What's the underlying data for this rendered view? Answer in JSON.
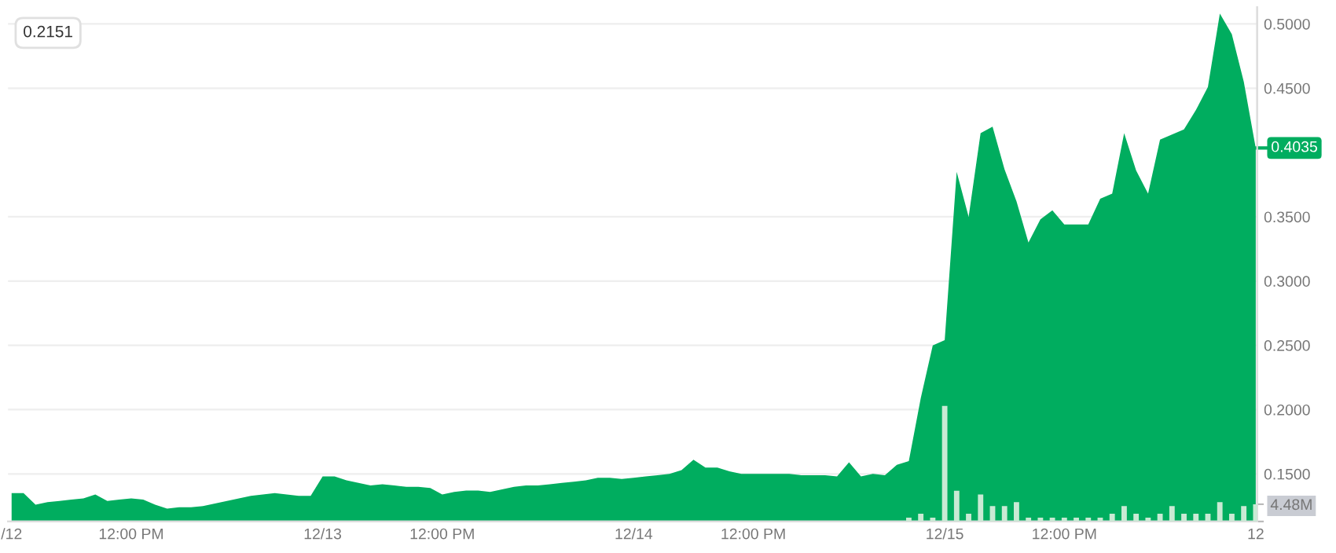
{
  "chart_data": {
    "type": "area",
    "annotations": [
      "0.2151",
      {
        "text": "0.4035",
        "x": "12",
        "y": 0.4035
      }
    ],
    "categories": [
      "/12",
      null,
      null,
      null,
      null,
      null,
      null,
      null,
      null,
      null,
      "12:00 PM",
      null,
      null,
      null,
      null,
      null,
      null,
      null,
      null,
      null,
      null,
      null,
      null,
      null,
      null,
      null,
      "12/13",
      null,
      null,
      null,
      null,
      null,
      null,
      null,
      null,
      null,
      "12:00 PM",
      null,
      null,
      null,
      null,
      null,
      null,
      null,
      null,
      null,
      null,
      null,
      null,
      null,
      null,
      null,
      "12/14",
      null,
      null,
      null,
      null,
      null,
      null,
      null,
      null,
      null,
      "12:00 PM",
      null,
      null,
      null,
      null,
      null,
      null,
      null,
      null,
      null,
      null,
      null,
      null,
      null,
      null,
      null,
      "12/15",
      null,
      null,
      null,
      null,
      null,
      null,
      null,
      null,
      null,
      "12:00 PM",
      null,
      null,
      null,
      null,
      null,
      null,
      null,
      null,
      null,
      null,
      null,
      null,
      null,
      null,
      null,
      "12"
    ],
    "ylim": [
      0.113,
      0.513
    ],
    "yticks": [
      {
        "value": 0.15,
        "label": "0.1500"
      },
      {
        "value": 0.2,
        "label": "0.2000"
      },
      {
        "value": 0.25,
        "label": "0.2500"
      },
      {
        "value": 0.3,
        "label": "0.3000"
      },
      {
        "value": 0.35,
        "label": "0.3500"
      },
      {
        "value": 0.45,
        "label": "0.4500"
      },
      {
        "value": 0.5,
        "label": "0.5000"
      }
    ],
    "y2lim": [
      0,
      133.6
    ],
    "y2ticks": [
      {
        "value": 0,
        "label": null
      },
      {
        "value": 4.48,
        "label": "4.48M"
      }
    ],
    "grid": "y",
    "series": [
      {
        "color": "#00ad5f",
        "values": [
          0.135,
          0.135,
          0.126,
          0.128,
          0.129,
          0.13,
          0.131,
          0.134,
          0.129,
          0.13,
          0.131,
          0.13,
          0.126,
          0.123,
          0.124,
          0.124,
          0.125,
          0.127,
          0.129,
          0.131,
          0.133,
          0.134,
          0.135,
          0.134,
          0.133,
          0.133,
          0.148,
          0.148,
          0.145,
          0.143,
          0.141,
          0.142,
          0.141,
          0.14,
          0.14,
          0.139,
          0.134,
          0.136,
          0.137,
          0.137,
          0.136,
          0.138,
          0.14,
          0.141,
          0.141,
          0.142,
          0.143,
          0.144,
          0.145,
          0.147,
          0.147,
          0.146,
          0.147,
          0.148,
          0.149,
          0.15,
          0.153,
          0.161,
          0.155,
          0.155,
          0.152,
          0.15,
          0.15,
          0.15,
          0.15,
          0.15,
          0.149,
          0.149,
          0.149,
          0.148,
          0.159,
          0.148,
          0.15,
          0.149,
          0.157,
          0.16,
          0.209,
          0.25,
          0.254,
          0.385,
          0.35,
          0.415,
          0.42,
          0.387,
          0.362,
          0.33,
          0.348,
          0.355,
          0.344,
          0.344,
          0.344,
          0.364,
          0.368,
          0.415,
          0.386,
          0.368,
          0.41,
          0.414,
          0.418,
          0.433,
          0.451,
          0.508,
          0.492,
          0.455,
          0.4035
        ]
      },
      {
        "type": "bar",
        "axis": "y2",
        "color": "#c9ead4",
        "values": [
          null,
          null,
          null,
          null,
          null,
          null,
          null,
          null,
          null,
          null,
          null,
          null,
          null,
          null,
          null,
          null,
          null,
          null,
          null,
          null,
          null,
          null,
          null,
          null,
          null,
          null,
          null,
          null,
          null,
          null,
          null,
          null,
          null,
          null,
          null,
          null,
          null,
          null,
          null,
          null,
          null,
          null,
          null,
          null,
          null,
          null,
          null,
          null,
          null,
          null,
          null,
          null,
          null,
          null,
          null,
          null,
          null,
          null,
          null,
          null,
          null,
          null,
          null,
          null,
          null,
          null,
          null,
          null,
          null,
          null,
          null,
          null,
          null,
          null,
          null,
          1,
          2,
          1,
          30,
          8,
          2,
          7,
          4,
          4,
          5,
          1,
          1,
          1,
          1,
          1,
          1,
          1,
          2,
          4,
          2,
          1,
          2,
          4,
          2,
          2,
          2,
          5,
          2,
          4,
          4.48
        ]
      }
    ]
  }
}
